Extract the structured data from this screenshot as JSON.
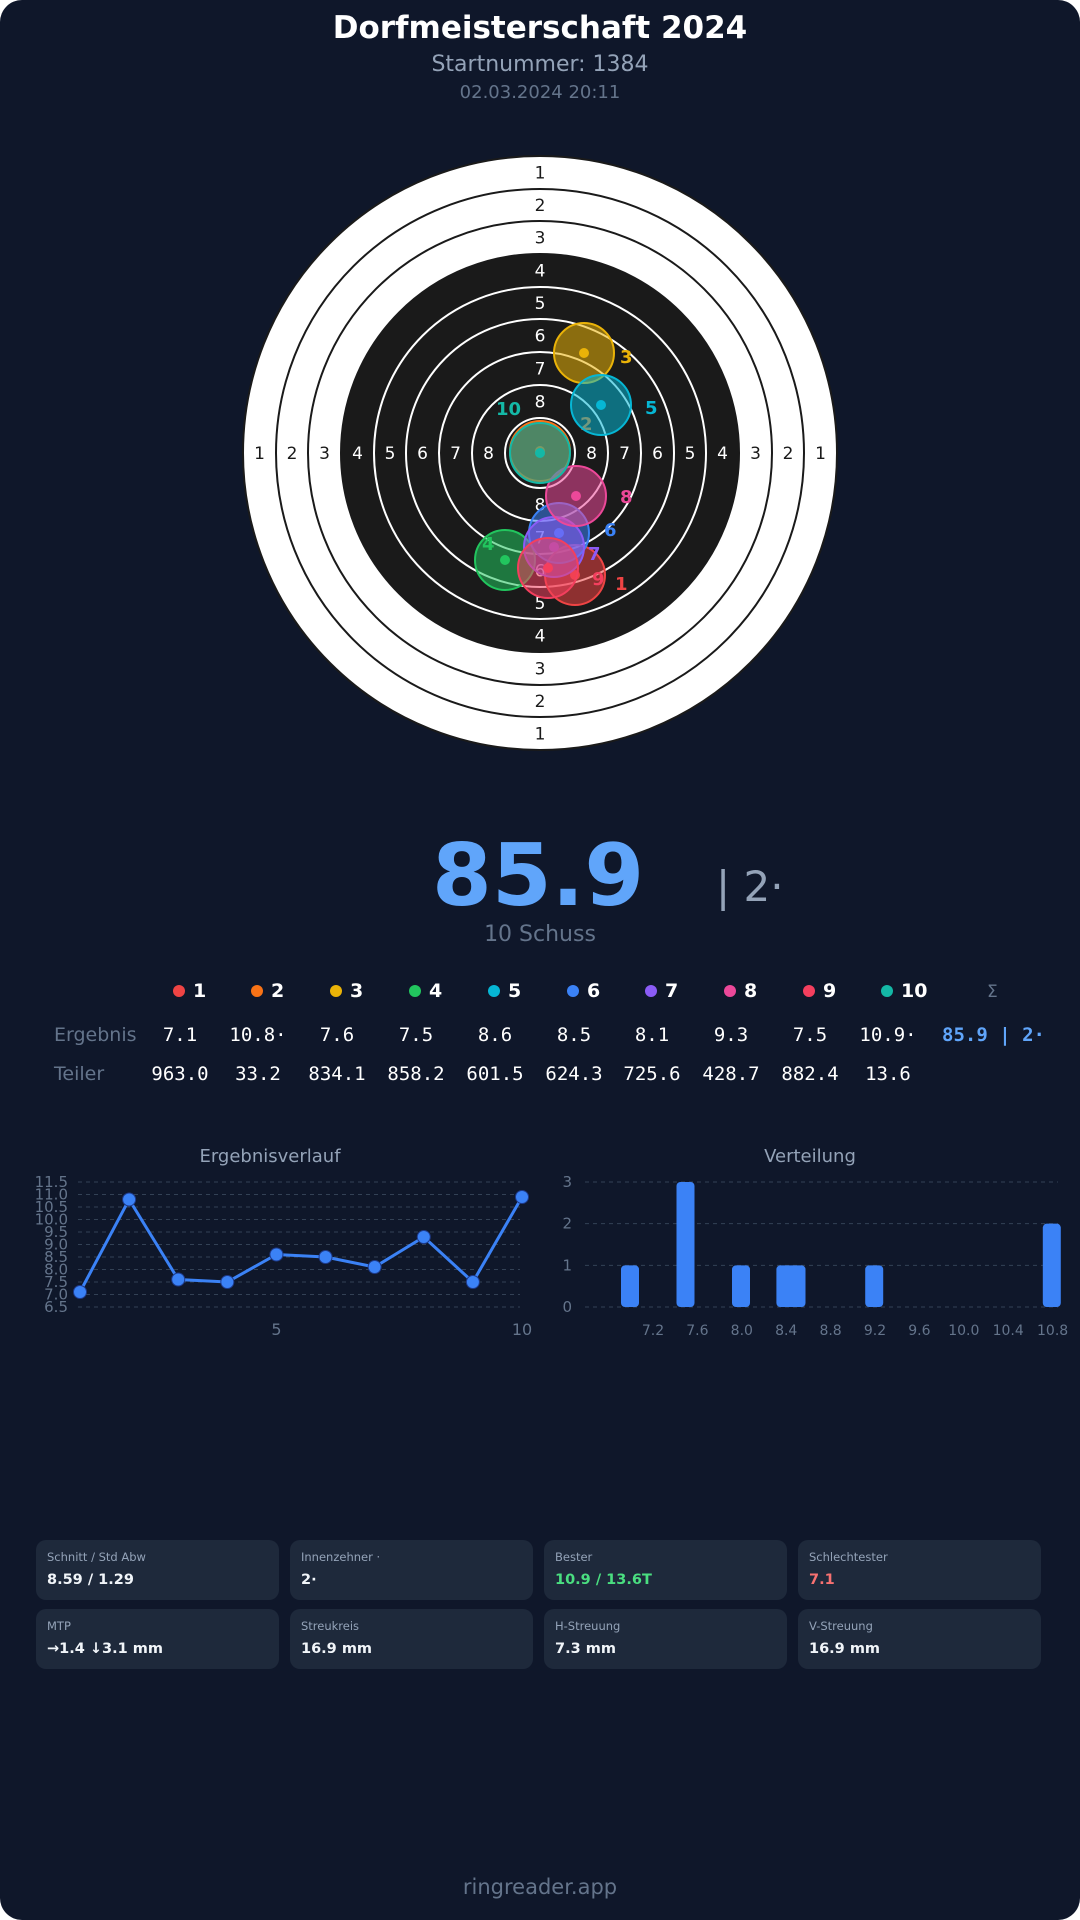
{
  "header": {
    "title": "Dorfmeisterschaft 2024",
    "start_number": "Startnummer: 1384",
    "datetime": "02.03.2024 20:11"
  },
  "target": {
    "ring_labels": [
      "1",
      "2",
      "3",
      "4",
      "5",
      "6",
      "7",
      "8"
    ],
    "shot_colors": [
      "#ef4444",
      "#f97316",
      "#eab308",
      "#22c55e",
      "#06b6d4",
      "#3b82f6",
      "#8b5cf6",
      "#ec4899",
      "#f43f5e",
      "#14b8a6"
    ],
    "shot_labels": [
      "1",
      "2",
      "3",
      "4",
      "5",
      "6",
      "7",
      "8",
      "9",
      "10"
    ]
  },
  "summary": {
    "total": "85.9",
    "inner_tens": "| 2·",
    "shots": "10 Schuss"
  },
  "table": {
    "sum_symbol": "Σ",
    "result_label": "Ergebnis",
    "divisor_label": "Teiler",
    "results": [
      "7.1",
      "10.8·",
      "7.6",
      "7.5",
      "8.6",
      "8.5",
      "8.1",
      "9.3",
      "7.5",
      "10.9·"
    ],
    "result_total": "85.9 | 2·",
    "divisors": [
      "963.0",
      "33.2",
      "834.1",
      "858.2",
      "601.5",
      "624.3",
      "725.6",
      "428.7",
      "882.4",
      "13.6"
    ]
  },
  "chart_data": [
    {
      "type": "line",
      "title": "Ergebnisverlauf",
      "x": [
        1,
        2,
        3,
        4,
        5,
        6,
        7,
        8,
        9,
        10
      ],
      "values": [
        7.1,
        10.8,
        7.6,
        7.5,
        8.6,
        8.5,
        8.1,
        9.3,
        7.5,
        10.9
      ],
      "ylim": [
        6.5,
        11.5
      ],
      "yticks": [
        "6.5",
        "7.0",
        "7.5",
        "8.0",
        "8.5",
        "9.0",
        "9.5",
        "10.0",
        "10.5",
        "11.0",
        "11.5"
      ],
      "xticks": [
        "5",
        "10"
      ],
      "grid": true,
      "color": "#3b82f6"
    },
    {
      "type": "bar",
      "title": "Verteilung",
      "categories": [
        7.1,
        7.6,
        8.1,
        8.5,
        8.6,
        9.3,
        10.9
      ],
      "values": [
        1,
        3,
        1,
        1,
        1,
        1,
        2
      ],
      "ylim": [
        0,
        3
      ],
      "yticks": [
        "0",
        "1",
        "2",
        "3"
      ],
      "xticks": [
        "7.2",
        "7.6",
        "8.0",
        "8.4",
        "8.8",
        "9.2",
        "9.6",
        "10.0",
        "10.4",
        "10.8"
      ],
      "grid": true,
      "color": "#3b82f6"
    }
  ],
  "stats": [
    {
      "label": "Schnitt / Std Abw",
      "value": "8.59 / 1.29",
      "color": "#f1f5f9"
    },
    {
      "label": "Innenzehner ·",
      "value": "2·",
      "color": "#f1f5f9"
    },
    {
      "label": "Bester",
      "value": "10.9 / 13.6T",
      "color": "#4ade80"
    },
    {
      "label": "Schlechtester",
      "value": "7.1",
      "color": "#f87171"
    },
    {
      "label": "MTP",
      "value": "→1.4 ↓3.1 mm",
      "color": "#f1f5f9"
    },
    {
      "label": "Streukreis",
      "value": "16.9 mm",
      "color": "#f1f5f9"
    },
    {
      "label": "H-Streuung",
      "value": "7.3 mm",
      "color": "#f1f5f9"
    },
    {
      "label": "V-Streuung",
      "value": "16.9 mm",
      "color": "#f1f5f9"
    }
  ],
  "footer": {
    "brand": "ringreader.app"
  }
}
